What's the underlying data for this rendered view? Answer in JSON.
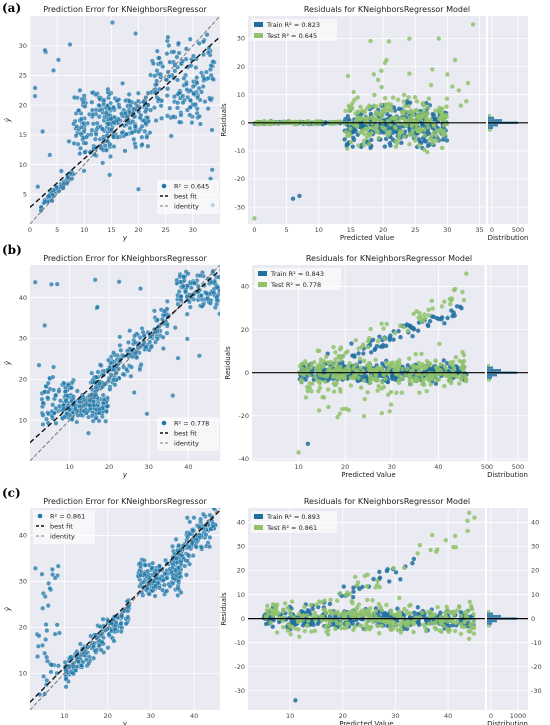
{
  "panels": [
    {
      "label": "(a)",
      "pe": {
        "title": "Prediction Error for KNeighborsRegressor",
        "xlabel": "y",
        "ylabel": "ŷ",
        "xlim": [
          0,
          35
        ],
        "ylim": [
          0,
          35
        ],
        "xticks": [
          0,
          5,
          10,
          15,
          20,
          25,
          30
        ],
        "yticks": [
          5,
          10,
          15,
          20,
          25,
          30
        ],
        "legend": [
          "R² = 0.645",
          "best fit",
          "identity"
        ],
        "r2": 0.645,
        "fit_slope": 0.82,
        "fit_intercept": 2.8
      },
      "res": {
        "title": "Residuals for KNeighborsRegressor Model",
        "xlabel": "Predicted Value",
        "ylabel": "Residuals",
        "dist_label": "Distribution",
        "xlim": [
          -1,
          36
        ],
        "ylim": [
          -36,
          38
        ],
        "xticks": [
          0,
          5,
          10,
          15,
          20,
          25,
          30,
          35
        ],
        "yticks": [
          -30,
          -20,
          -10,
          0,
          10,
          20,
          30
        ],
        "dist_xticks": [
          "0",
          "500"
        ],
        "legend": [
          "Train R² = 0.823",
          "Test R² = 0.645"
        ]
      }
    },
    {
      "label": "(b)",
      "pe": {
        "title": "Prediction Error for KNeighborsRegressor",
        "xlabel": "y",
        "ylabel": "ŷ",
        "xlim": [
          0,
          48
        ],
        "ylim": [
          0,
          48
        ],
        "xticks": [
          10,
          20,
          30,
          40
        ],
        "yticks": [
          10,
          20,
          30,
          40
        ],
        "legend": [
          "R² = 0.778",
          "best fit",
          "identity"
        ],
        "r2": 0.778,
        "fit_slope": 0.88,
        "fit_intercept": 4.5
      },
      "res": {
        "title": "Residuals for KNeighborsRegressor Model",
        "xlabel": "Predicted Value",
        "ylabel": "Residuals",
        "dist_label": "Distribution",
        "xlim": [
          0,
          50
        ],
        "ylim": [
          -41,
          50
        ],
        "xticks": [
          10,
          20,
          30,
          40,
          50
        ],
        "yticks": [
          -40,
          -20,
          0,
          20,
          40
        ],
        "dist_xticks": [
          "0",
          "500"
        ],
        "legend": [
          "Train R² = 0.843",
          "Test R² = 0.778"
        ]
      }
    },
    {
      "label": "(c)",
      "pe": {
        "title": "Prediction Error for KNeighborsRegressor",
        "xlabel": "y",
        "ylabel": "ŷ",
        "xlim": [
          2,
          46
        ],
        "ylim": [
          2,
          46
        ],
        "xticks": [
          10,
          20,
          30,
          40
        ],
        "yticks": [
          10,
          20,
          30,
          40
        ],
        "legend": [
          "R² = 0.861",
          "best fit",
          "identity"
        ],
        "r2": 0.861,
        "fit_slope": 0.95,
        "fit_intercept": 1.8
      },
      "res": {
        "title": "Residuals for KNeighborsRegressor Model",
        "xlabel": "Predicted Value",
        "ylabel": "Residuals",
        "dist_label": "Distribution",
        "xlim": [
          2,
          47
        ],
        "ylim": [
          -38,
          46
        ],
        "xticks": [
          10,
          20,
          30,
          40
        ],
        "yticks": [
          -30,
          -20,
          -10,
          0,
          10,
          20,
          30,
          40
        ],
        "dist_xticks": [
          "0",
          "1000"
        ],
        "legend": [
          "Train R² = 0.893",
          "Test R² = 0.861"
        ]
      }
    }
  ],
  "colors": {
    "train": "#1f6f9f",
    "test": "#8fc26b",
    "point": "#1f77a8",
    "plotbg": "#eaeaf2",
    "zero_line": "#000000"
  },
  "chart_data": [
    {
      "type": "scatter",
      "title": "Prediction Error for KNeighborsRegressor",
      "xlabel": "y",
      "ylabel": "ŷ",
      "r2": 0.645,
      "xlim": [
        0,
        35
      ],
      "ylim": [
        0,
        35
      ],
      "grid": true,
      "legend_position": "bottom-right"
    },
    {
      "type": "scatter",
      "title": "Residuals for KNeighborsRegressor Model",
      "xlabel": "Predicted Value",
      "ylabel": "Residuals",
      "series": [
        {
          "name": "Train R² = 0.823"
        },
        {
          "name": "Test R² = 0.645"
        }
      ],
      "xlim": [
        -1,
        36
      ],
      "ylim": [
        -36,
        38
      ],
      "grid": true,
      "legend_position": "top-left"
    },
    {
      "type": "scatter",
      "title": "Prediction Error for KNeighborsRegressor",
      "xlabel": "y",
      "ylabel": "ŷ",
      "r2": 0.778,
      "xlim": [
        0,
        48
      ],
      "ylim": [
        0,
        48
      ],
      "grid": true,
      "legend_position": "bottom-right"
    },
    {
      "type": "scatter",
      "title": "Residuals for KNeighborsRegressor Model",
      "xlabel": "Predicted Value",
      "ylabel": "Residuals",
      "series": [
        {
          "name": "Train R² = 0.843"
        },
        {
          "name": "Test R² = 0.778"
        }
      ],
      "xlim": [
        0,
        50
      ],
      "ylim": [
        -41,
        50
      ],
      "grid": true,
      "legend_position": "top-left"
    },
    {
      "type": "scatter",
      "title": "Prediction Error for KNeighborsRegressor",
      "xlabel": "y",
      "ylabel": "ŷ",
      "r2": 0.861,
      "xlim": [
        2,
        46
      ],
      "ylim": [
        2,
        46
      ],
      "grid": true,
      "legend_position": "top-left"
    },
    {
      "type": "scatter",
      "title": "Residuals for KNeighborsRegressor Model",
      "xlabel": "Predicted Value",
      "ylabel": "Residuals",
      "series": [
        {
          "name": "Train R² = 0.893"
        },
        {
          "name": "Test R² = 0.861"
        }
      ],
      "xlim": [
        2,
        47
      ],
      "ylim": [
        -38,
        46
      ],
      "grid": true,
      "legend_position": "top-left"
    }
  ]
}
